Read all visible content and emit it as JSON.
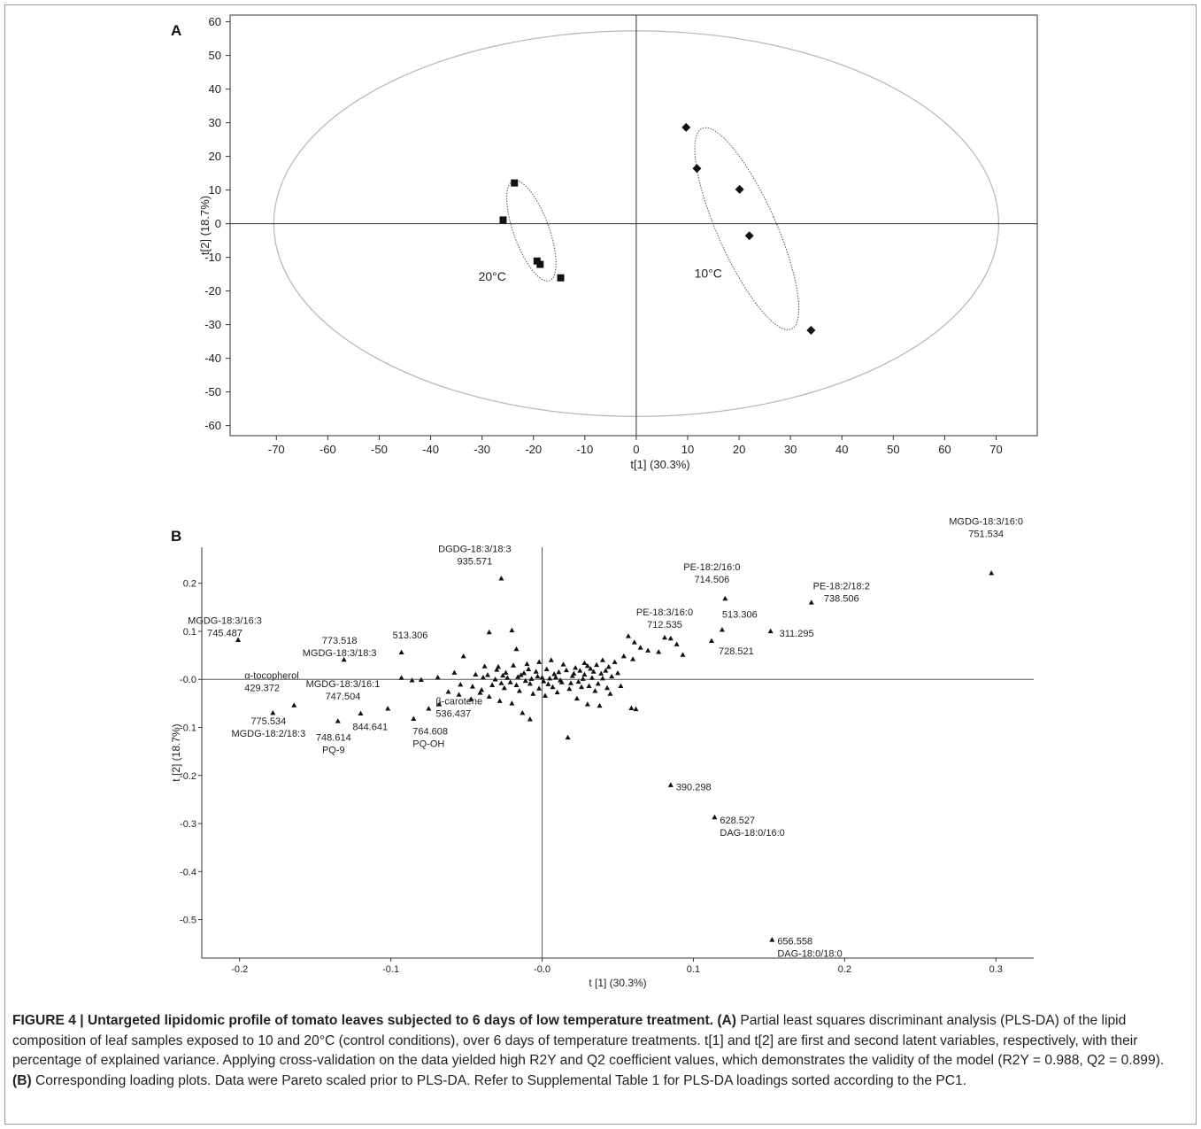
{
  "chart_data": [
    {
      "panel": "A",
      "type": "scatter",
      "xlabel": "t[1]  (30.3%)",
      "ylabel": "t[2] (18.7%)",
      "xlim": [
        -79,
        78
      ],
      "ylim": [
        -63,
        62
      ],
      "xticks": [
        -70,
        -60,
        -50,
        -40,
        -30,
        -20,
        -10,
        0,
        10,
        20,
        30,
        40,
        50,
        60,
        70
      ],
      "yticks": [
        60,
        50,
        40,
        30,
        20,
        10,
        0,
        -10,
        -20,
        -30,
        -40,
        -50,
        -60
      ],
      "grid": false,
      "series": [
        {
          "marker": "square",
          "points": [
            [
              -25.9,
              1.1
            ],
            [
              -23.7,
              12.1
            ],
            [
              -19.3,
              -11.1
            ],
            [
              -18.7,
              -12.1
            ],
            [
              -14.7,
              -16.1
            ]
          ]
        },
        {
          "marker": "diamond",
          "points": [
            [
              9.7,
              28.6
            ],
            [
              11.8,
              16.4
            ],
            [
              20.1,
              10.2
            ],
            [
              22.0,
              -3.6
            ],
            [
              34.0,
              -31.7
            ]
          ]
        }
      ],
      "annotations": [
        {
          "text": "20°C",
          "x": -28,
          "y": -17
        },
        {
          "text": "10°C",
          "x": 14,
          "y": -16
        }
      ]
    },
    {
      "panel": "B",
      "type": "scatter",
      "xlabel": "t [1] (30.3%)",
      "ylabel": "t [2] (18.7%)",
      "xlim": [
        -0.225,
        0.325
      ],
      "ylim": [
        -0.58,
        0.275
      ],
      "xticks": [
        -0.2,
        -0.1,
        0.0,
        0.1,
        0.2,
        0.3
      ],
      "xtick_labels": [
        "-0.2",
        "-0.1",
        "-0.0",
        "0.1",
        "0.2",
        "0.3"
      ],
      "yticks": [
        0.2,
        0.1,
        0.0,
        -0.1,
        -0.2,
        -0.3,
        -0.4,
        -0.5
      ],
      "ytick_labels": [
        "0.2",
        "0.1",
        "-0.0",
        "-0.1",
        "-0.2",
        "-0.3",
        "-0.4",
        "-0.5"
      ],
      "grid": false,
      "labeled_points": [
        {
          "x": 0.297,
          "y": 0.221,
          "lines": [
            "MGDG-18:3/16:0",
            "751.534"
          ]
        },
        {
          "x": -0.027,
          "y": 0.21,
          "lines": [
            "DGDG-18:3/18:3",
            "935.571"
          ]
        },
        {
          "x": 0.121,
          "y": 0.168,
          "lines": [
            "PE-18:2/16:0",
            "714.506"
          ]
        },
        {
          "x": 0.178,
          "y": 0.16,
          "lines": [
            "PE-18:2/18:2",
            "738.506"
          ]
        },
        {
          "x": 0.081,
          "y": 0.087,
          "lines": [
            "PE-18:3/16:0",
            "712.535"
          ]
        },
        {
          "x": -0.201,
          "y": 0.082,
          "lines": [
            "MGDG-18:3/16:3",
            "745.487"
          ]
        },
        {
          "x": 0.119,
          "y": 0.103,
          "lines": [
            "513.306"
          ]
        },
        {
          "x": 0.151,
          "y": 0.1,
          "lines": [
            "311.295"
          ]
        },
        {
          "x": 0.112,
          "y": 0.08,
          "lines": [
            "728.521"
          ]
        },
        {
          "x": -0.131,
          "y": 0.041,
          "lines": [
            "773.518",
            "MGDG-18:3/18:3"
          ]
        },
        {
          "x": -0.093,
          "y": 0.056,
          "lines": [
            "513.306"
          ]
        },
        {
          "x": -0.164,
          "y": -0.054,
          "lines": [
            "α-tocopherol",
            "429.372"
          ]
        },
        {
          "x": -0.12,
          "y": -0.071,
          "lines": [
            "MGDG-18:3/16:1",
            "747.504"
          ]
        },
        {
          "x": -0.075,
          "y": -0.061,
          "lines": [
            "β-carotene",
            "536.437"
          ]
        },
        {
          "x": -0.102,
          "y": -0.061,
          "lines": [
            "844.641"
          ]
        },
        {
          "x": -0.085,
          "y": -0.082,
          "lines": [
            "764.608",
            "PQ-OH"
          ]
        },
        {
          "x": -0.178,
          "y": -0.07,
          "lines": [
            "775.534",
            "MGDG-18:2/18:3"
          ]
        },
        {
          "x": -0.135,
          "y": -0.087,
          "lines": [
            "748.614",
            "PQ-9"
          ]
        },
        {
          "x": 0.085,
          "y": -0.22,
          "lines": [
            "390.298"
          ]
        },
        {
          "x": 0.114,
          "y": -0.287,
          "lines": [
            "628.527",
            "DAG-18:0/16:0"
          ]
        },
        {
          "x": 0.152,
          "y": -0.542,
          "lines": [
            "656.558",
            "DAG-18:0/18:0"
          ]
        }
      ],
      "other_points": [
        [
          0.057,
          0.09
        ],
        [
          0.061,
          0.077
        ],
        [
          0.065,
          0.066
        ],
        [
          0.07,
          0.06
        ],
        [
          0.077,
          0.057
        ],
        [
          0.085,
          0.085
        ],
        [
          0.089,
          0.073
        ],
        [
          0.093,
          0.051
        ],
        [
          0.06,
          0.042
        ],
        [
          0.054,
          0.048
        ],
        [
          0.048,
          0.036
        ],
        [
          0.044,
          0.026
        ],
        [
          0.04,
          0.04
        ],
        [
          0.036,
          0.03
        ],
        [
          0.032,
          0.022
        ],
        [
          0.028,
          0.034
        ],
        [
          0.025,
          0.018
        ],
        [
          0.05,
          0.013
        ],
        [
          0.062,
          -0.062
        ],
        [
          0.059,
          -0.06
        ],
        [
          0.038,
          -0.055
        ],
        [
          0.03,
          -0.052
        ],
        [
          0.023,
          -0.04
        ],
        [
          0.017,
          -0.121
        ],
        [
          -0.008,
          -0.083
        ],
        [
          -0.013,
          -0.07
        ],
        [
          -0.02,
          -0.05
        ],
        [
          -0.028,
          -0.045
        ],
        [
          -0.035,
          -0.036
        ],
        [
          -0.041,
          -0.028
        ],
        [
          -0.047,
          -0.041
        ],
        [
          -0.055,
          -0.032
        ],
        [
          -0.062,
          -0.026
        ],
        [
          -0.068,
          -0.052
        ],
        [
          -0.052,
          0.048
        ],
        [
          -0.038,
          0.027
        ],
        [
          -0.035,
          0.098
        ],
        [
          -0.02,
          0.102
        ],
        [
          -0.017,
          0.063
        ],
        [
          -0.024,
          0.014
        ],
        [
          -0.03,
          0.02
        ],
        [
          -0.044,
          0.01
        ],
        [
          -0.058,
          0.014
        ],
        [
          -0.069,
          0.004
        ],
        [
          -0.08,
          -0.001
        ],
        [
          -0.086,
          -0.002
        ],
        [
          -0.093,
          0.003
        ],
        [
          -0.054,
          -0.011
        ],
        [
          -0.046,
          -0.015
        ],
        [
          -0.04,
          -0.022
        ],
        [
          -0.031,
          0.0
        ],
        [
          -0.026,
          0.008
        ],
        [
          -0.021,
          -0.006
        ],
        [
          -0.016,
          0.005
        ],
        [
          -0.012,
          0.013
        ],
        [
          -0.008,
          -0.009
        ],
        [
          -0.004,
          0.016
        ],
        [
          0.0,
          0.004
        ],
        [
          0.004,
          -0.01
        ],
        [
          0.008,
          0.011
        ],
        [
          0.012,
          -0.002
        ],
        [
          0.016,
          0.019
        ],
        [
          0.02,
          0.007
        ],
        [
          0.024,
          -0.005
        ],
        [
          0.028,
          0.01
        ],
        [
          0.033,
          0.003
        ],
        [
          0.037,
          -0.009
        ],
        [
          0.042,
          0.018
        ],
        [
          0.046,
          0.006
        ],
        [
          0.052,
          -0.014
        ],
        [
          -0.036,
          0.009
        ],
        [
          -0.033,
          -0.012
        ],
        [
          -0.029,
          0.026
        ],
        [
          -0.025,
          -0.018
        ],
        [
          -0.019,
          0.029
        ],
        [
          -0.015,
          -0.024
        ],
        [
          -0.01,
          0.032
        ],
        [
          -0.006,
          -0.03
        ],
        [
          -0.002,
          0.036
        ],
        [
          0.002,
          -0.034
        ],
        [
          0.006,
          0.04
        ],
        [
          0.01,
          -0.027
        ],
        [
          0.014,
          0.031
        ],
        [
          0.018,
          -0.02
        ],
        [
          0.022,
          0.024
        ],
        [
          0.026,
          -0.016
        ],
        [
          0.03,
          0.028
        ],
        [
          0.035,
          -0.024
        ],
        [
          0.039,
          0.012
        ],
        [
          0.045,
          -0.03
        ],
        [
          -0.003,
          0.006
        ],
        [
          0.001,
          -0.004
        ],
        [
          0.005,
          0.002
        ],
        [
          -0.007,
          0.001
        ],
        [
          0.009,
          0.004
        ],
        [
          -0.011,
          -0.003
        ],
        [
          0.013,
          -0.006
        ],
        [
          -0.014,
          0.009
        ],
        [
          0.003,
          0.021
        ],
        [
          -0.002,
          -0.019
        ],
        [
          0.007,
          -0.016
        ],
        [
          -0.009,
          0.021
        ],
        [
          0.011,
          0.015
        ],
        [
          -0.017,
          -0.012
        ],
        [
          0.019,
          -0.008
        ],
        [
          -0.023,
          0.003
        ],
        [
          0.021,
          0.012
        ],
        [
          0.027,
          0.001
        ],
        [
          -0.027,
          -0.008
        ],
        [
          0.031,
          -0.014
        ],
        [
          0.034,
          0.016
        ],
        [
          -0.039,
          0.004
        ],
        [
          0.04,
          0.002
        ],
        [
          0.043,
          -0.018
        ]
      ]
    }
  ],
  "panel_a_label": "A",
  "panel_b_label": "B",
  "caption": {
    "bold": "FIGURE 4 | Untargeted lipidomic profile of tomato leaves subjected to 6 days of low temperature treatment. (A)",
    "text1": " Partial least squares discriminant analysis (PLS-DA) of the lipid composition of leaf samples exposed to 10 and 20°C (control conditions), over 6 days of temperature treatments. t[1] and t[2] are first and second latent variables, respectively, with their percentage of explained variance. Applying cross-validation on the data yielded high R2Y and Q2 coefficient values, which demonstrates the validity of the model (R2Y = 0.988, Q2 = 0.899). ",
    "bold2": "(B)",
    "text2": " Corresponding loading plots. Data were Pareto scaled prior to PLS-DA. Refer to Supplemental Table 1 for PLS-DA loadings sorted according to the PC1."
  }
}
